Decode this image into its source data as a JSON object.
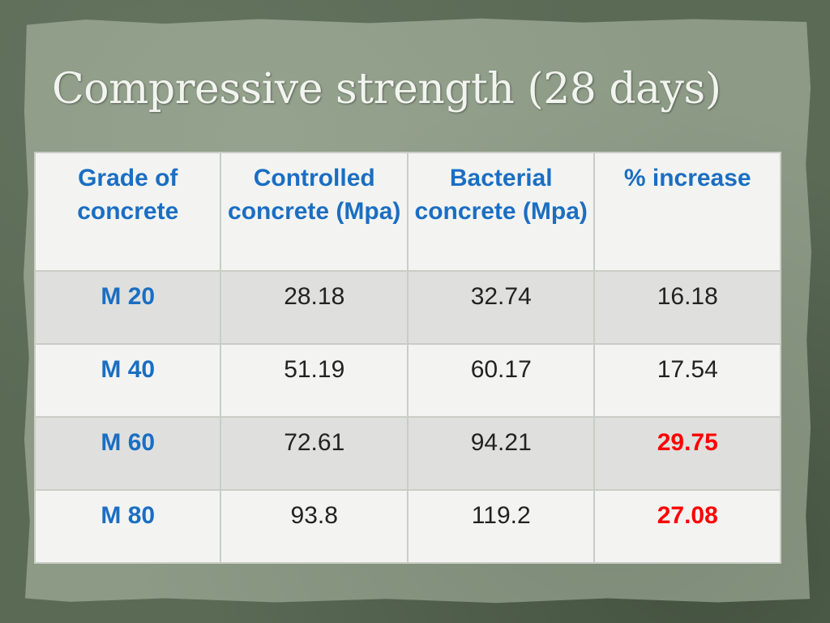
{
  "title": "Compressive strength (28 days)",
  "table": {
    "headers": [
      "Grade of concrete",
      "Controlled concrete (Mpa)",
      "Bacterial concrete (Mpa)",
      "% increase"
    ],
    "rows": [
      {
        "grade": "M 20",
        "controlled": "28.18",
        "bacterial": "32.74",
        "increase": "16.18"
      },
      {
        "grade": "M 40",
        "controlled": "51.19",
        "bacterial": "60.17",
        "increase": "17.54"
      },
      {
        "grade": "M 60",
        "controlled": "72.61",
        "bacterial": "94.21",
        "increase": "29.75"
      },
      {
        "grade": "M 80",
        "controlled": "93.8",
        "bacterial": "119.2",
        "increase": "27.08"
      }
    ]
  },
  "colors": {
    "header_text": "#1b6ec2",
    "highlight_text": "#ff0000",
    "background": "#5a6a55",
    "panel": "#8c9a86"
  }
}
